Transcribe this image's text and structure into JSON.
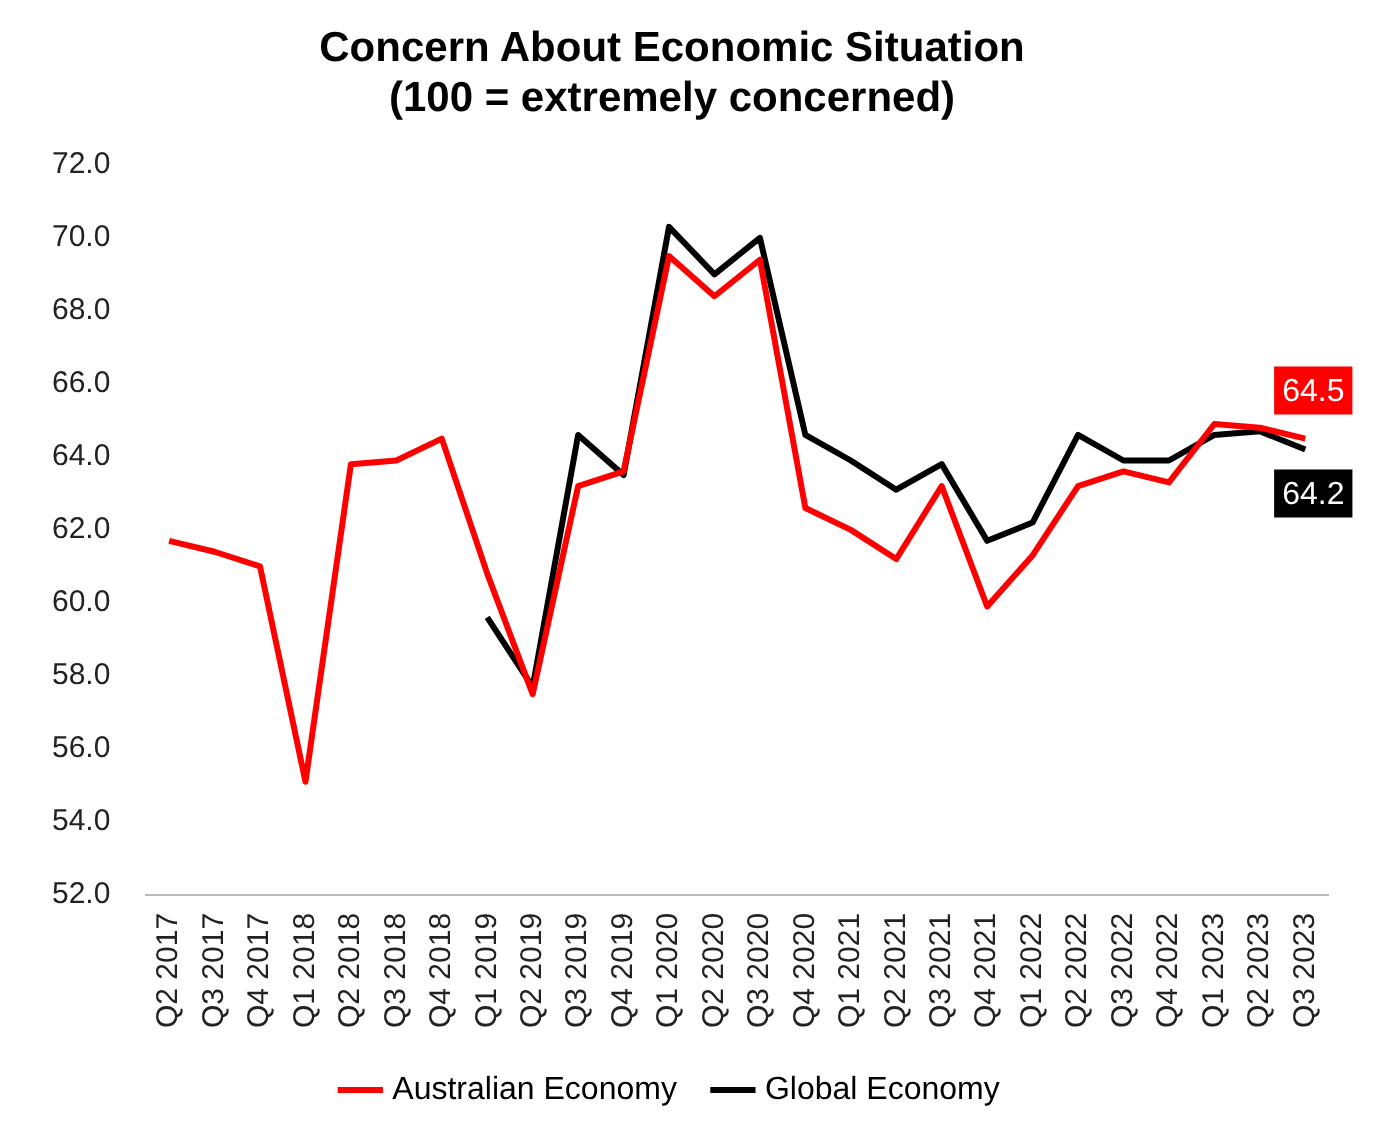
{
  "chart_data": {
    "type": "line",
    "title": "Concern About Economic Situation\n(100 = extremely concerned)",
    "categories": [
      "Q2 2017",
      "Q3 2017",
      "Q4 2017",
      "Q1 2018",
      "Q2 2018",
      "Q3 2018",
      "Q4 2018",
      "Q1 2019",
      "Q2 2019",
      "Q3 2019",
      "Q4 2019",
      "Q1 2020",
      "Q2 2020",
      "Q3 2020",
      "Q4 2020",
      "Q1 2021",
      "Q2 2021",
      "Q3 2021",
      "Q4 2021",
      "Q1 2022",
      "Q2 2022",
      "Q3 2022",
      "Q4 2022",
      "Q1 2023",
      "Q2 2023",
      "Q3 2023"
    ],
    "series": [
      {
        "name": "Australian Economy",
        "color": "#ff0000",
        "values": [
          61.7,
          61.4,
          61.0,
          55.1,
          63.8,
          63.9,
          64.5,
          60.8,
          57.5,
          63.2,
          63.6,
          69.5,
          68.4,
          69.4,
          62.6,
          62.0,
          61.2,
          63.2,
          59.9,
          61.3,
          63.2,
          63.6,
          63.3,
          64.9,
          64.8,
          64.5
        ],
        "value_labels": [
          null,
          null,
          null,
          null,
          null,
          null,
          null,
          null,
          null,
          null,
          null,
          null,
          null,
          null,
          null,
          null,
          null,
          null,
          null,
          null,
          null,
          null,
          null,
          null,
          null,
          "64.5"
        ]
      },
      {
        "name": "Global Economy",
        "color": "#000000",
        "values": [
          null,
          null,
          null,
          null,
          null,
          null,
          null,
          59.6,
          57.7,
          64.6,
          63.5,
          70.3,
          69.0,
          70.0,
          64.6,
          63.9,
          63.1,
          63.8,
          61.7,
          62.2,
          64.6,
          63.9,
          63.9,
          64.6,
          64.7,
          64.2
        ],
        "value_labels": [
          null,
          null,
          null,
          null,
          null,
          null,
          null,
          null,
          null,
          null,
          null,
          null,
          null,
          null,
          null,
          null,
          null,
          null,
          null,
          null,
          null,
          null,
          null,
          null,
          null,
          "64.2"
        ]
      }
    ],
    "ylim": [
      52,
      72
    ],
    "yticks": [
      {
        "value": 52,
        "label": "52.0"
      },
      {
        "value": 54,
        "label": "54.0"
      },
      {
        "value": 56,
        "label": "56.0"
      },
      {
        "value": 58,
        "label": "58.0"
      },
      {
        "value": 60,
        "label": "60.0"
      },
      {
        "value": 62,
        "label": "62.0"
      },
      {
        "value": 64,
        "label": "64.0"
      },
      {
        "value": 66,
        "label": "66.0"
      },
      {
        "value": 68,
        "label": "68.0"
      },
      {
        "value": 70,
        "label": "70.0"
      },
      {
        "value": 72,
        "label": "72.0"
      }
    ],
    "grid": false,
    "legend": "bottom",
    "marker": "none",
    "line_style": "solid"
  }
}
